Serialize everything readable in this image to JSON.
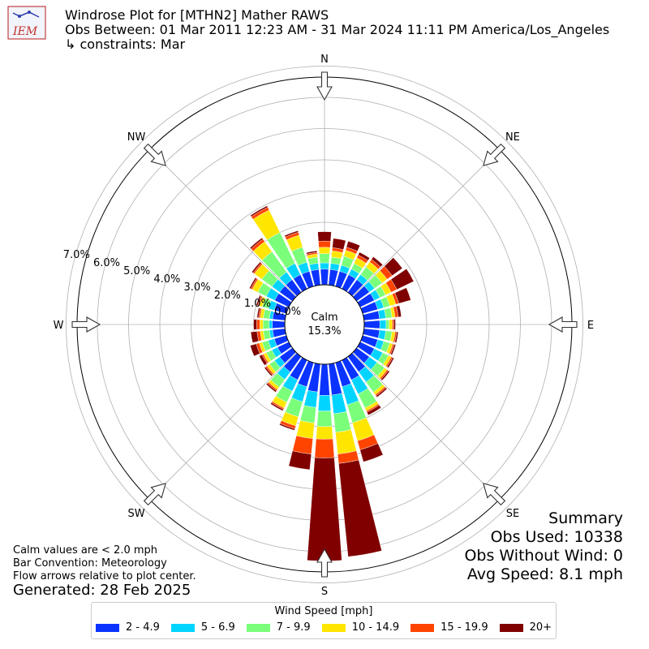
{
  "header": {
    "logo_text": "IEM",
    "title": "Windrose Plot for [MTHN2] Mather RAWS",
    "obs_between": "Obs Between: 01 Mar 2011 12:23 AM - 31 Mar 2024 11:11 PM America/Los_Angeles",
    "constraints": "↳ constraints: Mar"
  },
  "summary": {
    "heading": "Summary",
    "obs_used": "Obs Used: 10338",
    "obs_without_wind": "Obs Without Wind: 0",
    "avg_speed": "Avg Speed: 8.1 mph"
  },
  "notes": {
    "calm_note": "Calm values are < 2.0 mph",
    "bar_convention": "Bar Convention: Meteorology",
    "flow_arrows": "Flow arrows relative to plot center.",
    "generated": "Generated: 28 Feb 2025"
  },
  "chart_data": {
    "type": "windrose",
    "calm_label": "Calm",
    "calm_value": "15.3%",
    "radial_ticks": [
      "0.0%",
      "1.0%",
      "2.0%",
      "3.0%",
      "4.0%",
      "5.0%",
      "6.0%",
      "7.0%"
    ],
    "radial_max": 7.0,
    "directions": [
      {
        "label": "N",
        "angle": 0
      },
      {
        "label": "NE",
        "angle": 45
      },
      {
        "label": "E",
        "angle": 90
      },
      {
        "label": "SE",
        "angle": 135
      },
      {
        "label": "S",
        "angle": 180
      },
      {
        "label": "SW",
        "angle": 225
      },
      {
        "label": "W",
        "angle": 270
      },
      {
        "label": "NW",
        "angle": 315
      }
    ],
    "legend_title": "Wind Speed [mph]",
    "bins": [
      {
        "label": "2 - 4.9",
        "color": "#0b33ff"
      },
      {
        "label": "5 - 6.9",
        "color": "#00d4ff"
      },
      {
        "label": "7 - 9.9",
        "color": "#7bff7b"
      },
      {
        "label": "10 - 14.9",
        "color": "#ffe600"
      },
      {
        "label": "15 - 19.9",
        "color": "#ff4400"
      },
      {
        "label": "20+",
        "color": "#800000"
      }
    ],
    "sector_angles": [
      0,
      10,
      20,
      30,
      40,
      50,
      60,
      70,
      80,
      90,
      100,
      110,
      120,
      130,
      140,
      150,
      160,
      170,
      180,
      190,
      200,
      210,
      220,
      230,
      240,
      250,
      260,
      270,
      280,
      290,
      300,
      310,
      320,
      330,
      340,
      350
    ],
    "values": [
      [
        0.5,
        0.2,
        0.3,
        0.2,
        0.2,
        0.3
      ],
      [
        0.5,
        0.2,
        0.2,
        0.2,
        0.1,
        0.3
      ],
      [
        0.5,
        0.2,
        0.3,
        0.2,
        0.1,
        0.2
      ],
      [
        0.5,
        0.2,
        0.2,
        0.2,
        0.1,
        0.1
      ],
      [
        0.5,
        0.2,
        0.3,
        0.2,
        0.1,
        0.1
      ],
      [
        0.5,
        0.2,
        0.3,
        0.2,
        0.2,
        0.4
      ],
      [
        0.5,
        0.2,
        0.2,
        0.2,
        0.2,
        0.6
      ],
      [
        0.5,
        0.2,
        0.2,
        0.2,
        0.1,
        0.4
      ],
      [
        0.5,
        0.2,
        0.2,
        0.1,
        0.1,
        0.1
      ],
      [
        0.5,
        0.2,
        0.1,
        0.1,
        0.05,
        0.05
      ],
      [
        0.5,
        0.2,
        0.2,
        0.1,
        0.05,
        0.05
      ],
      [
        0.5,
        0.2,
        0.2,
        0.1,
        0.05,
        0.05
      ],
      [
        0.5,
        0.3,
        0.2,
        0.1,
        0.05,
        0.05
      ],
      [
        0.5,
        0.3,
        0.3,
        0.1,
        0.05,
        0.05
      ],
      [
        0.6,
        0.4,
        0.4,
        0.1,
        0.05,
        0.05
      ],
      [
        0.7,
        0.5,
        0.5,
        0.1,
        0.05,
        0.1
      ],
      [
        0.8,
        0.6,
        0.6,
        0.6,
        0.3,
        0.4
      ],
      [
        1.0,
        0.6,
        0.6,
        0.7,
        0.3,
        3.0
      ],
      [
        1.0,
        0.5,
        0.5,
        0.4,
        0.6,
        3.3
      ],
      [
        0.9,
        0.5,
        0.5,
        0.5,
        0.5,
        0.5
      ],
      [
        0.8,
        0.5,
        0.5,
        0.3,
        0.1,
        0.05
      ],
      [
        0.7,
        0.4,
        0.4,
        0.2,
        0.05,
        0.05
      ],
      [
        0.6,
        0.3,
        0.3,
        0.1,
        0.05,
        0.05
      ],
      [
        0.5,
        0.2,
        0.2,
        0.1,
        0.05,
        0.05
      ],
      [
        0.4,
        0.2,
        0.2,
        0.1,
        0.05,
        0.1
      ],
      [
        0.4,
        0.2,
        0.2,
        0.1,
        0.1,
        0.2
      ],
      [
        0.4,
        0.1,
        0.2,
        0.1,
        0.1,
        0.2
      ],
      [
        0.4,
        0.1,
        0.2,
        0.1,
        0.1,
        0.1
      ],
      [
        0.4,
        0.1,
        0.2,
        0.1,
        0.05,
        0.05
      ],
      [
        0.4,
        0.2,
        0.2,
        0.1,
        0.05,
        0.05
      ],
      [
        0.5,
        0.3,
        0.3,
        0.2,
        0.05,
        0.05
      ],
      [
        0.5,
        0.3,
        0.4,
        0.3,
        0.05,
        0.05
      ],
      [
        0.5,
        0.3,
        0.8,
        0.4,
        0.1,
        0.05
      ],
      [
        0.5,
        0.4,
        1.1,
        0.8,
        0.1,
        0.05
      ],
      [
        0.5,
        0.3,
        0.5,
        0.4,
        0.1,
        0.05
      ],
      [
        0.5,
        0.2,
        0.2,
        0.1,
        0.05,
        0.05
      ]
    ]
  }
}
